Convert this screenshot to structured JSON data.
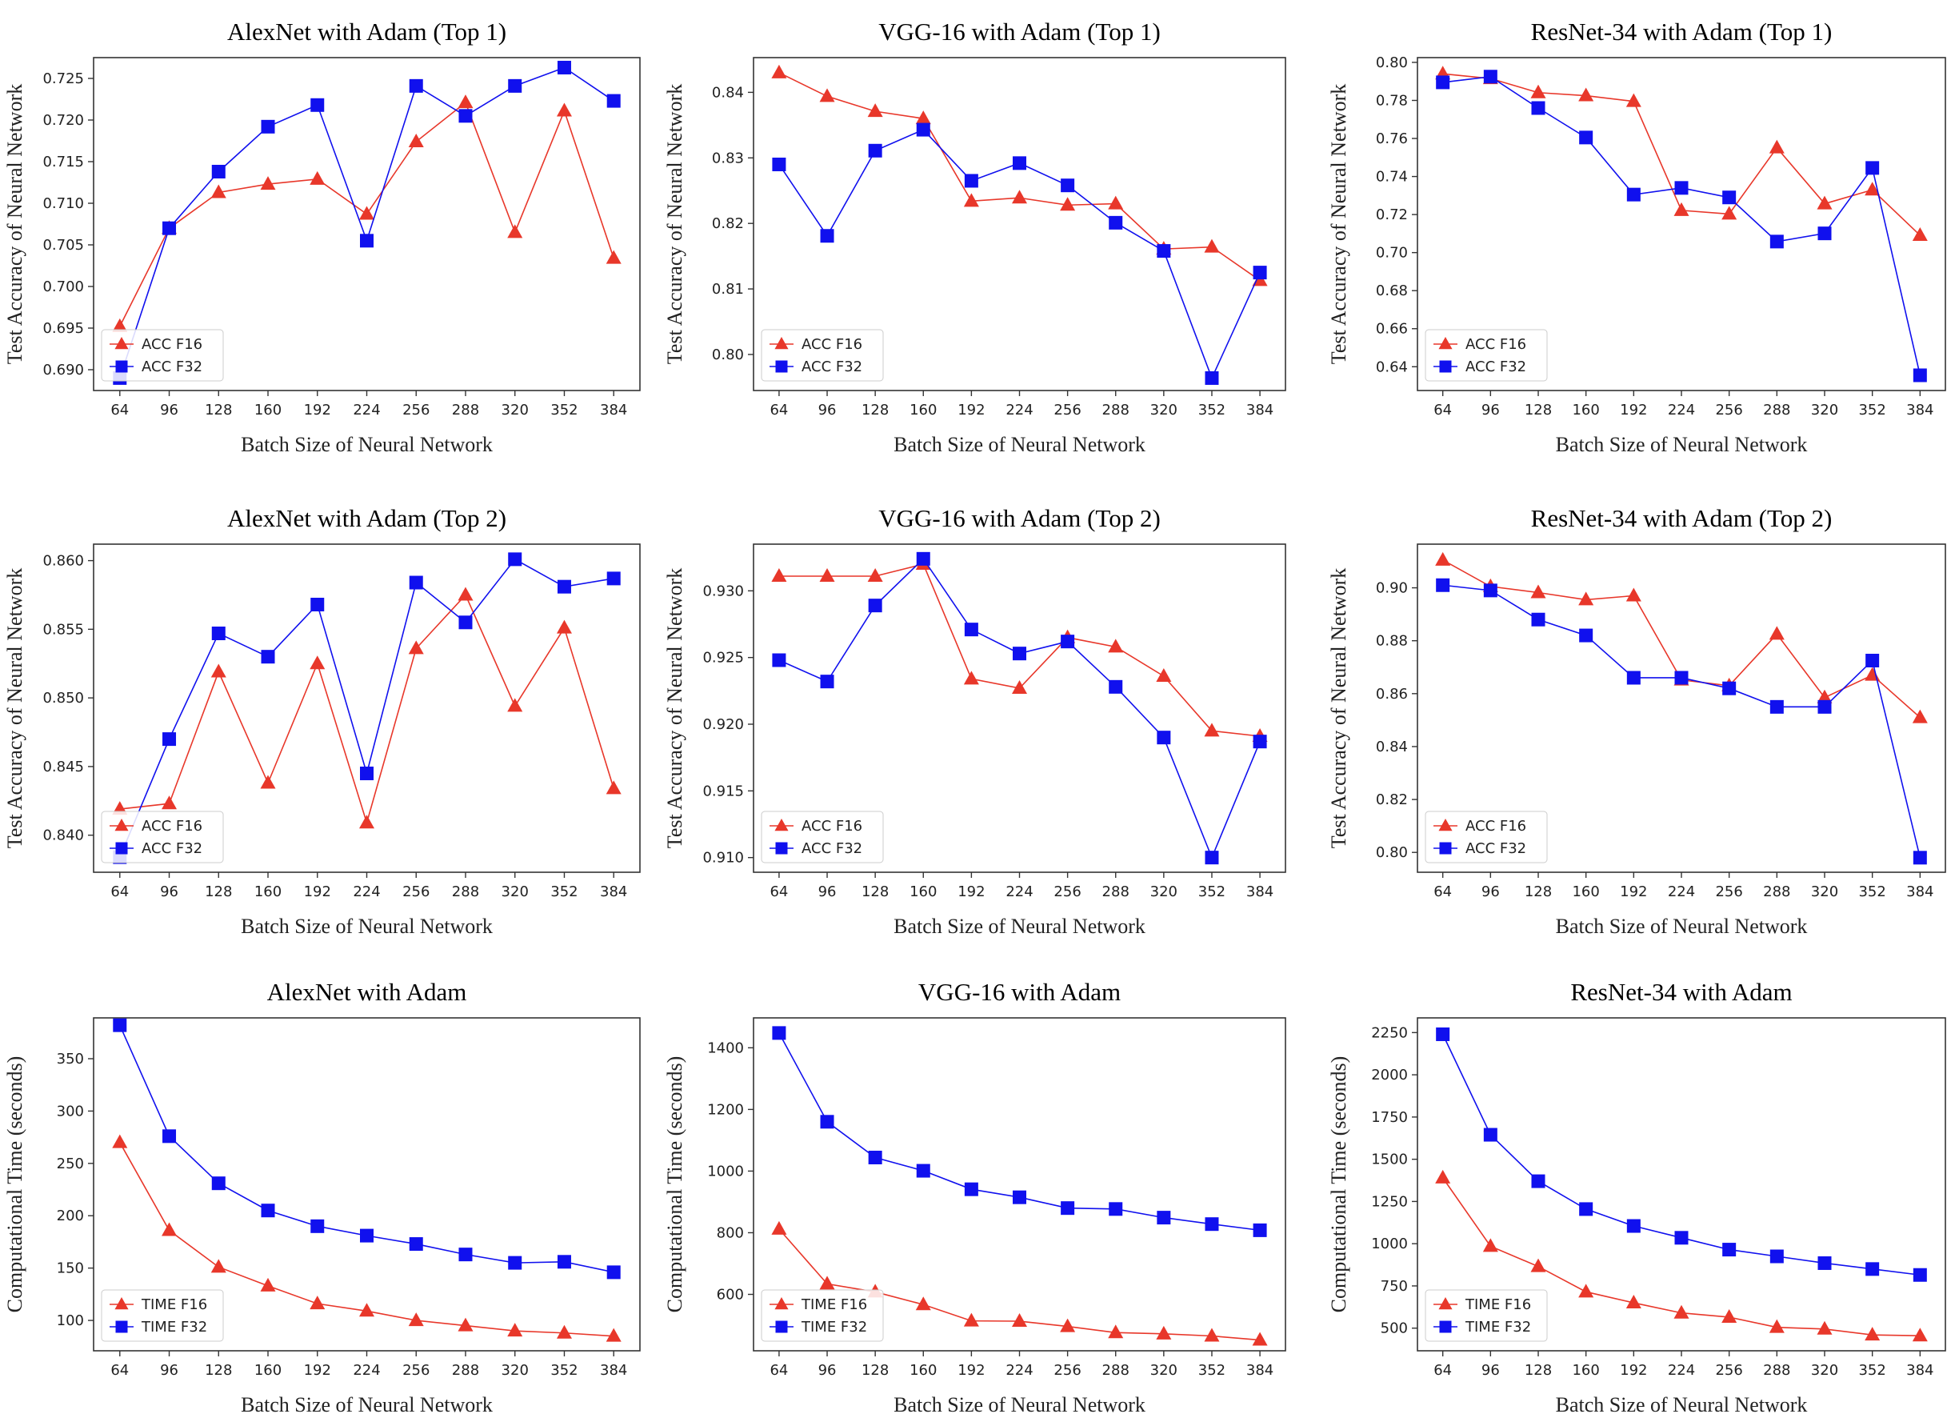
{
  "colors": {
    "f16": "#e8372a",
    "f32": "#1010ee"
  },
  "chart_data": [
    {
      "type": "line",
      "title": "AlexNet with Adam (Top 1)",
      "xlabel": "Batch Size of Neural Network",
      "ylabel": "Test Accuracy of Neural Network",
      "x": [
        64,
        96,
        128,
        160,
        192,
        224,
        256,
        288,
        320,
        352,
        384
      ],
      "xticks": [
        "64",
        "96",
        "128",
        "160",
        "192",
        "224",
        "256",
        "288",
        "320",
        "352",
        "384"
      ],
      "ylim": [
        0.6875,
        0.7275
      ],
      "yticks": [
        0.69,
        0.695,
        0.7,
        0.705,
        0.71,
        0.715,
        0.72,
        0.725
      ],
      "ytick_labels": [
        "0.690",
        "0.695",
        "0.700",
        "0.705",
        "0.710",
        "0.715",
        "0.720",
        "0.725"
      ],
      "legend": "lower-left",
      "series": [
        {
          "name": "ACC F16",
          "marker": "triangle",
          "values": [
            0.6952,
            0.707,
            0.7113,
            0.7123,
            0.7129,
            0.7087,
            0.7174,
            0.7221,
            0.7065,
            0.7211,
            0.7034
          ]
        },
        {
          "name": "ACC F32",
          "marker": "square",
          "values": [
            0.689,
            0.707,
            0.7138,
            0.7192,
            0.7218,
            0.7055,
            0.7241,
            0.7205,
            0.7241,
            0.7263,
            0.7223
          ]
        }
      ]
    },
    {
      "type": "line",
      "title": "VGG-16 with Adam (Top 1)",
      "xlabel": "Batch Size of Neural Network",
      "ylabel": "Test Accuracy of Neural Network",
      "x": [
        64,
        96,
        128,
        160,
        192,
        224,
        256,
        288,
        320,
        352,
        384
      ],
      "xticks": [
        "64",
        "96",
        "128",
        "160",
        "192",
        "224",
        "256",
        "288",
        "320",
        "352",
        "384"
      ],
      "ylim": [
        0.7945,
        0.8453
      ],
      "yticks": [
        0.8,
        0.81,
        0.82,
        0.83,
        0.84
      ],
      "ytick_labels": [
        "0.80",
        "0.81",
        "0.82",
        "0.83",
        "0.84"
      ],
      "legend": "lower-left",
      "series": [
        {
          "name": "ACC F16",
          "marker": "triangle",
          "values": [
            0.843,
            0.8394,
            0.8371,
            0.836,
            0.8234,
            0.8239,
            0.8228,
            0.823,
            0.8161,
            0.8164,
            0.8113
          ]
        },
        {
          "name": "ACC F32",
          "marker": "square",
          "values": [
            0.829,
            0.8181,
            0.8311,
            0.8343,
            0.8265,
            0.8292,
            0.8258,
            0.8201,
            0.8158,
            0.7964,
            0.8125
          ]
        }
      ]
    },
    {
      "type": "line",
      "title": "ResNet-34 with Adam (Top 1)",
      "xlabel": "Batch Size of Neural Network",
      "ylabel": "Test Accuracy of Neural Network",
      "x": [
        64,
        96,
        128,
        160,
        192,
        224,
        256,
        288,
        320,
        352,
        384
      ],
      "xticks": [
        "64",
        "96",
        "128",
        "160",
        "192",
        "224",
        "256",
        "288",
        "320",
        "352",
        "384"
      ],
      "ylim": [
        0.6275,
        0.8025
      ],
      "yticks": [
        0.64,
        0.66,
        0.68,
        0.7,
        0.72,
        0.74,
        0.76,
        0.78,
        0.8
      ],
      "ytick_labels": [
        "0.64",
        "0.66",
        "0.68",
        "0.70",
        "0.72",
        "0.74",
        "0.76",
        "0.78",
        "0.80"
      ],
      "legend": "lower-left",
      "series": [
        {
          "name": "ACC F16",
          "marker": "triangle",
          "values": [
            0.794,
            0.7915,
            0.7841,
            0.7825,
            0.7795,
            0.7222,
            0.7203,
            0.7551,
            0.7257,
            0.733,
            0.7091
          ]
        },
        {
          "name": "ACC F32",
          "marker": "square",
          "values": [
            0.7895,
            0.7925,
            0.776,
            0.7605,
            0.7305,
            0.734,
            0.729,
            0.7058,
            0.7101,
            0.7445,
            0.6355
          ]
        }
      ]
    },
    {
      "type": "line",
      "title": "AlexNet with Adam (Top 2)",
      "xlabel": "Batch Size of Neural Network",
      "ylabel": "Test Accuracy of Neural Network",
      "x": [
        64,
        96,
        128,
        160,
        192,
        224,
        256,
        288,
        320,
        352,
        384
      ],
      "xticks": [
        "64",
        "96",
        "128",
        "160",
        "192",
        "224",
        "256",
        "288",
        "320",
        "352",
        "384"
      ],
      "ylim": [
        0.8373,
        0.8612
      ],
      "yticks": [
        0.84,
        0.845,
        0.85,
        0.855,
        0.86
      ],
      "ytick_labels": [
        "0.840",
        "0.845",
        "0.850",
        "0.855",
        "0.860"
      ],
      "legend": "lower-left",
      "series": [
        {
          "name": "ACC F16",
          "marker": "triangle",
          "values": [
            0.8419,
            0.8423,
            0.8519,
            0.8438,
            0.8525,
            0.8409,
            0.8536,
            0.8575,
            0.8494,
            0.8551,
            0.8434
          ]
        },
        {
          "name": "ACC F32",
          "marker": "square",
          "values": [
            0.8384,
            0.847,
            0.8547,
            0.853,
            0.8568,
            0.8445,
            0.8584,
            0.8555,
            0.8601,
            0.8581,
            0.8587
          ]
        }
      ]
    },
    {
      "type": "line",
      "title": "VGG-16 with Adam (Top 2)",
      "xlabel": "Batch Size of Neural Network",
      "ylabel": "Test Accuracy of Neural Network",
      "x": [
        64,
        96,
        128,
        160,
        192,
        224,
        256,
        288,
        320,
        352,
        384
      ],
      "xticks": [
        "64",
        "96",
        "128",
        "160",
        "192",
        "224",
        "256",
        "288",
        "320",
        "352",
        "384"
      ],
      "ylim": [
        0.9089,
        0.9335
      ],
      "yticks": [
        0.91,
        0.915,
        0.92,
        0.925,
        0.93
      ],
      "ytick_labels": [
        "0.910",
        "0.915",
        "0.920",
        "0.925",
        "0.930"
      ],
      "legend": "lower-left",
      "series": [
        {
          "name": "ACC F16",
          "marker": "triangle",
          "values": [
            0.9311,
            0.9311,
            0.9311,
            0.932,
            0.9234,
            0.9227,
            0.9265,
            0.9258,
            0.9236,
            0.9195,
            0.9191
          ]
        },
        {
          "name": "ACC F32",
          "marker": "square",
          "values": [
            0.9248,
            0.9232,
            0.9289,
            0.9324,
            0.9271,
            0.9253,
            0.9262,
            0.9228,
            0.919,
            0.91,
            0.9187
          ]
        }
      ]
    },
    {
      "type": "line",
      "title": "ResNet-34 with Adam (Top 2)",
      "xlabel": "Batch Size of Neural Network",
      "ylabel": "Test Accuracy of Neural Network",
      "x": [
        64,
        96,
        128,
        160,
        192,
        224,
        256,
        288,
        320,
        352,
        384
      ],
      "xticks": [
        "64",
        "96",
        "128",
        "160",
        "192",
        "224",
        "256",
        "288",
        "320",
        "352",
        "384"
      ],
      "ylim": [
        0.7925,
        0.9165
      ],
      "yticks": [
        0.8,
        0.82,
        0.84,
        0.86,
        0.88,
        0.9
      ],
      "ytick_labels": [
        "0.80",
        "0.82",
        "0.84",
        "0.86",
        "0.88",
        "0.90"
      ],
      "legend": "lower-left",
      "series": [
        {
          "name": "ACC F16",
          "marker": "triangle",
          "values": [
            0.9105,
            0.9005,
            0.8982,
            0.8955,
            0.897,
            0.8652,
            0.863,
            0.8825,
            0.8585,
            0.867,
            0.851
          ]
        },
        {
          "name": "ACC F32",
          "marker": "square",
          "values": [
            0.901,
            0.899,
            0.888,
            0.882,
            0.866,
            0.866,
            0.862,
            0.855,
            0.855,
            0.8725,
            0.798
          ]
        }
      ]
    },
    {
      "type": "line",
      "title": "AlexNet with Adam",
      "xlabel": "Batch Size of Neural Network",
      "ylabel": "Computational Time (seconds)",
      "x": [
        64,
        96,
        128,
        160,
        192,
        224,
        256,
        288,
        320,
        352,
        384
      ],
      "xticks": [
        "64",
        "96",
        "128",
        "160",
        "192",
        "224",
        "256",
        "288",
        "320",
        "352",
        "384"
      ],
      "ylim": [
        71,
        389
      ],
      "yticks": [
        100,
        150,
        200,
        250,
        300,
        350
      ],
      "ytick_labels": [
        "100",
        "150",
        "200",
        "250",
        "300",
        "350"
      ],
      "legend": "lower-left",
      "series": [
        {
          "name": "TIME F16",
          "marker": "triangle",
          "values": [
            270,
            186,
            151,
            133,
            116,
            109,
            100,
            95,
            90,
            88,
            85
          ]
        },
        {
          "name": "TIME F32",
          "marker": "square",
          "values": [
            382,
            276,
            231,
            205,
            190,
            181,
            173,
            163,
            155,
            156,
            146
          ]
        }
      ]
    },
    {
      "type": "line",
      "title": "VGG-16 with Adam",
      "xlabel": "Batch Size of Neural Network",
      "ylabel": "Computational Time (seconds)",
      "x": [
        64,
        96,
        128,
        160,
        192,
        224,
        256,
        288,
        320,
        352,
        384
      ],
      "xticks": [
        "64",
        "96",
        "128",
        "160",
        "192",
        "224",
        "256",
        "288",
        "320",
        "352",
        "384"
      ],
      "ylim": [
        417,
        1497
      ],
      "yticks": [
        600,
        800,
        1000,
        1200,
        1400
      ],
      "ytick_labels": [
        "600",
        "800",
        "1000",
        "1200",
        "1400"
      ],
      "legend": "lower-left",
      "series": [
        {
          "name": "TIME F16",
          "marker": "triangle",
          "values": [
            812,
            634,
            608,
            567,
            514,
            513,
            496,
            476,
            472,
            465,
            452
          ]
        },
        {
          "name": "TIME F32",
          "marker": "square",
          "values": [
            1448,
            1160,
            1044,
            1001,
            941,
            915,
            880,
            877,
            849,
            828,
            808
          ]
        }
      ]
    },
    {
      "type": "line",
      "title": "ResNet-34 with Adam",
      "xlabel": "Batch Size of Neural Network",
      "ylabel": "Computational Time (seconds)",
      "x": [
        64,
        96,
        128,
        160,
        192,
        224,
        256,
        288,
        320,
        352,
        384
      ],
      "xticks": [
        "64",
        "96",
        "128",
        "160",
        "192",
        "224",
        "256",
        "288",
        "320",
        "352",
        "384"
      ],
      "ylim": [
        366,
        2337
      ],
      "yticks": [
        500,
        750,
        1000,
        1250,
        1500,
        1750,
        2000,
        2250
      ],
      "ytick_labels": [
        "500",
        "750",
        "1000",
        "1250",
        "1500",
        "1750",
        "2000",
        "2250"
      ],
      "legend": "lower-left",
      "series": [
        {
          "name": "TIME F16",
          "marker": "triangle",
          "values": [
            1390,
            985,
            865,
            715,
            650,
            590,
            565,
            505,
            495,
            460,
            455
          ]
        },
        {
          "name": "TIME F32",
          "marker": "square",
          "values": [
            2240,
            1645,
            1370,
            1205,
            1105,
            1035,
            965,
            925,
            885,
            850,
            815
          ]
        }
      ]
    }
  ]
}
